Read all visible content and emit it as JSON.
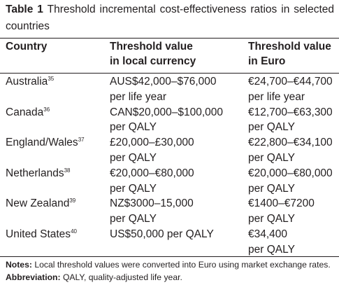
{
  "caption": {
    "label": "Table 1",
    "text": "Threshold incremental cost-effectiveness ratios in selected countries"
  },
  "headers": {
    "country": "Country",
    "local_line1": "Threshold value",
    "local_line2": "in local currency",
    "euro_line1": "Threshold value",
    "euro_line2": "in Euro"
  },
  "rows": [
    {
      "country": "Australia",
      "ref": "35",
      "local_line1": "AUS$42,000–$76,000",
      "local_line2": "per life year",
      "euro_line1": "€24,700–€44,700",
      "euro_line2": "per life year"
    },
    {
      "country": "Canada",
      "ref": "36",
      "local_line1": "CAN$20,000–$100,000",
      "local_line2": "per QALY",
      "euro_line1": "€12,700–€63,300",
      "euro_line2": "per QALY"
    },
    {
      "country": "England/Wales",
      "ref": "37",
      "local_line1": "£20,000–£30,000",
      "local_line2": "per QALY",
      "euro_line1": "€22,800–€34,100",
      "euro_line2": "per QALY"
    },
    {
      "country": "Netherlands",
      "ref": "38",
      "local_line1": "€20,000–€80,000",
      "local_line2": "per QALY",
      "euro_line1": "€20,000–€80,000",
      "euro_line2": "per QALY"
    },
    {
      "country": "New Zealand",
      "ref": "39",
      "local_line1": "NZ$3000–15,000",
      "local_line2": "per QALY",
      "euro_line1": "€1400–€7200",
      "euro_line2": "per QALY"
    },
    {
      "country": "United States",
      "ref": "40",
      "local_line1": "US$50,000 per QALY",
      "local_line2": "",
      "euro_line1": "€34,400",
      "euro_line2": "per QALY"
    }
  ],
  "notes": {
    "notes_label": "Notes:",
    "notes_text": "Local threshold values were converted into Euro using market exchange rates.",
    "abbrev_label": "Abbreviation:",
    "abbrev_text": "QALY, quality-adjusted life year."
  }
}
